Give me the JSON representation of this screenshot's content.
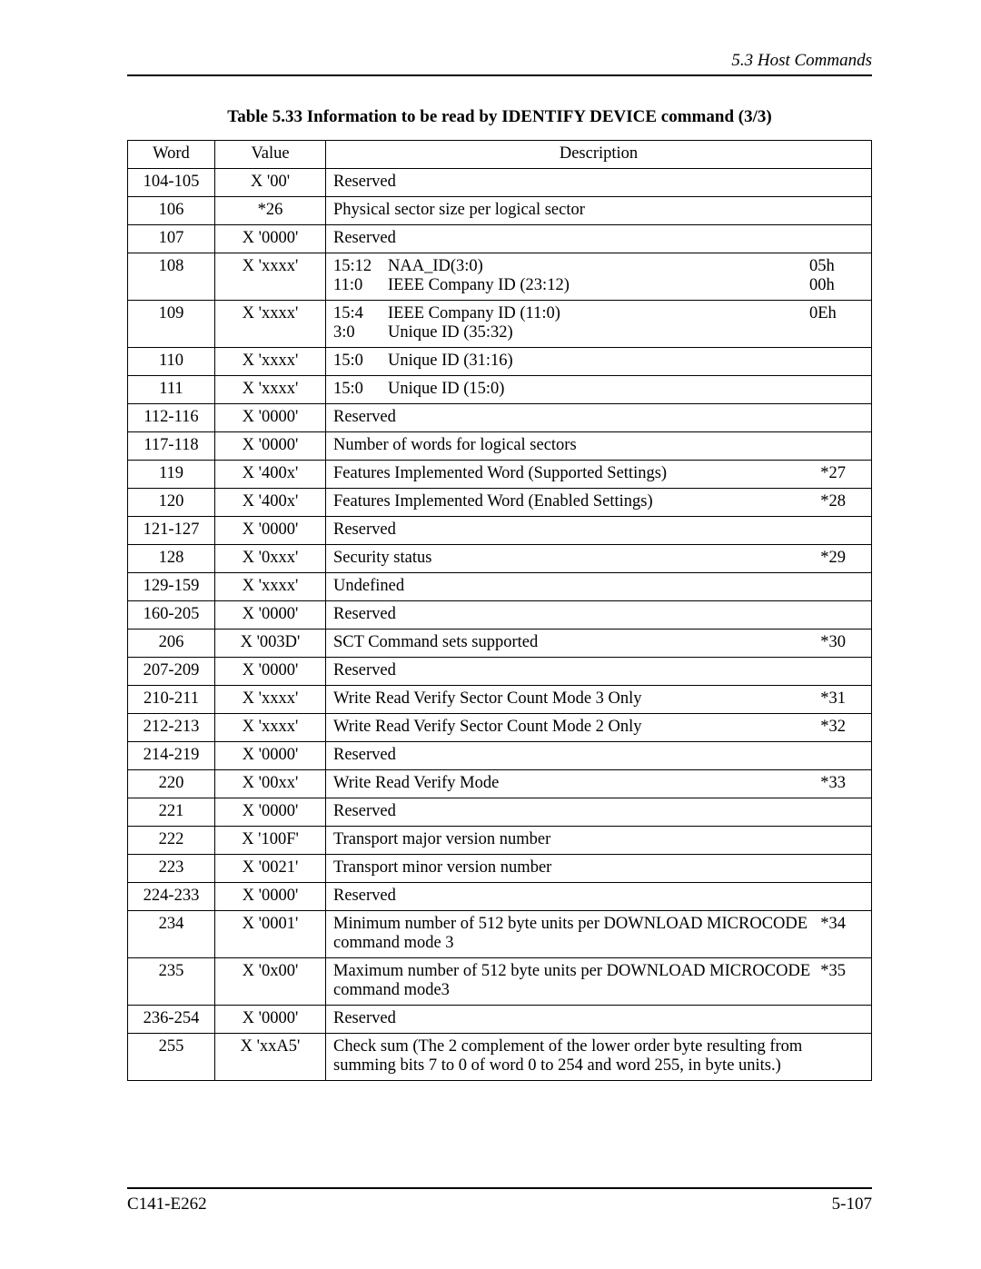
{
  "header": {
    "section": "5.3  Host Commands"
  },
  "title": "Table 5.33  Information to be read by IDENTIFY DEVICE command (3/3)",
  "columns": {
    "word": "Word",
    "value": "Value",
    "desc": "Description"
  },
  "rows": [
    {
      "word": "104-105",
      "value": "X '00'",
      "desc": "Reserved"
    },
    {
      "word": "106",
      "value": "*26",
      "desc": "Physical sector size per logical sector"
    },
    {
      "word": "107",
      "value": "X '0000'",
      "desc": "Reserved"
    },
    {
      "word": "108",
      "value": "X 'xxxx'",
      "bitfields": [
        {
          "bits": "15:12",
          "name": "NAA_ID(3:0)",
          "code": "05h"
        },
        {
          "bits": "11:0",
          "name": "IEEE Company ID  (23:12)",
          "code": "00h"
        }
      ]
    },
    {
      "word": "109",
      "value": "X 'xxxx'",
      "bitfields": [
        {
          "bits": "15:4",
          "name": "IEEE Company ID  (11:0)",
          "code": "0Eh"
        },
        {
          "bits": "3:0",
          "name": "Unique ID  (35:32)",
          "code": ""
        }
      ]
    },
    {
      "word": "110",
      "value": "X 'xxxx'",
      "bitfields": [
        {
          "bits": "15:0",
          "name": "Unique ID  (31:16)",
          "code": ""
        }
      ]
    },
    {
      "word": "111",
      "value": "X 'xxxx'",
      "bitfields": [
        {
          "bits": "15:0",
          "name": "Unique ID  (15:0)",
          "code": ""
        }
      ]
    },
    {
      "word": "112-116",
      "value": "X '0000'",
      "desc": "Reserved"
    },
    {
      "word": "117-118",
      "value": "X '0000'",
      "desc": "Number of words for logical sectors"
    },
    {
      "word": "119",
      "value": "X '400x'",
      "desc": "Features Implemented Word (Supported Settings)",
      "note": "*27"
    },
    {
      "word": "120",
      "value": "X '400x'",
      "desc": "Features Implemented Word (Enabled Settings)",
      "note": "*28"
    },
    {
      "word": "121-127",
      "value": "X '0000'",
      "desc": "Reserved"
    },
    {
      "word": "128",
      "value": "X '0xxx'",
      "desc": "Security status",
      "note": "*29"
    },
    {
      "word": "129-159",
      "value": "X 'xxxx'",
      "desc": "Undefined"
    },
    {
      "word": "160-205",
      "value": "X '0000'",
      "desc": "Reserved"
    },
    {
      "word": "206",
      "value": "X '003D'",
      "desc": "SCT Command sets supported",
      "note": "*30"
    },
    {
      "word": "207-209",
      "value": "X '0000'",
      "desc": "Reserved"
    },
    {
      "word": "210-211",
      "value": "X 'xxxx'",
      "desc": "Write Read Verify Sector Count Mode 3 Only",
      "note": "*31"
    },
    {
      "word": "212-213",
      "value": "X 'xxxx'",
      "desc": "Write Read Verify Sector Count Mode 2 Only",
      "note": "*32"
    },
    {
      "word": "214-219",
      "value": "X '0000'",
      "desc": "Reserved"
    },
    {
      "word": "220",
      "value": "X '00xx'",
      "desc": "Write Read Verify Mode",
      "note": "*33"
    },
    {
      "word": "221",
      "value": "X '0000'",
      "desc": "Reserved"
    },
    {
      "word": "222",
      "value": "X '100F'",
      "desc": "Transport major version number"
    },
    {
      "word": "223",
      "value": "X '0021'",
      "desc": "Transport minor version number"
    },
    {
      "word": "224-233",
      "value": "X '0000'",
      "desc": "Reserved"
    },
    {
      "word": "234",
      "value": "X '0001'",
      "desc": "Minimum number of 512 byte units per DOWNLOAD MICROCODE command mode 3",
      "note": "*34"
    },
    {
      "word": "235",
      "value": "X '0x00'",
      "desc": "Maximum number of 512 byte units per DOWNLOAD MICROCODE command mode3",
      "note": "*35"
    },
    {
      "word": "236-254",
      "value": "X '0000'",
      "desc": "Reserved"
    },
    {
      "word": "255",
      "value": "X 'xxA5'",
      "desc": "Check sum (The 2 complement of the lower order byte resulting from summing bits 7 to 0 of word 0 to 254 and word 255, in byte units.)"
    }
  ],
  "footer": {
    "left": "C141-E262",
    "right": "5-107"
  }
}
